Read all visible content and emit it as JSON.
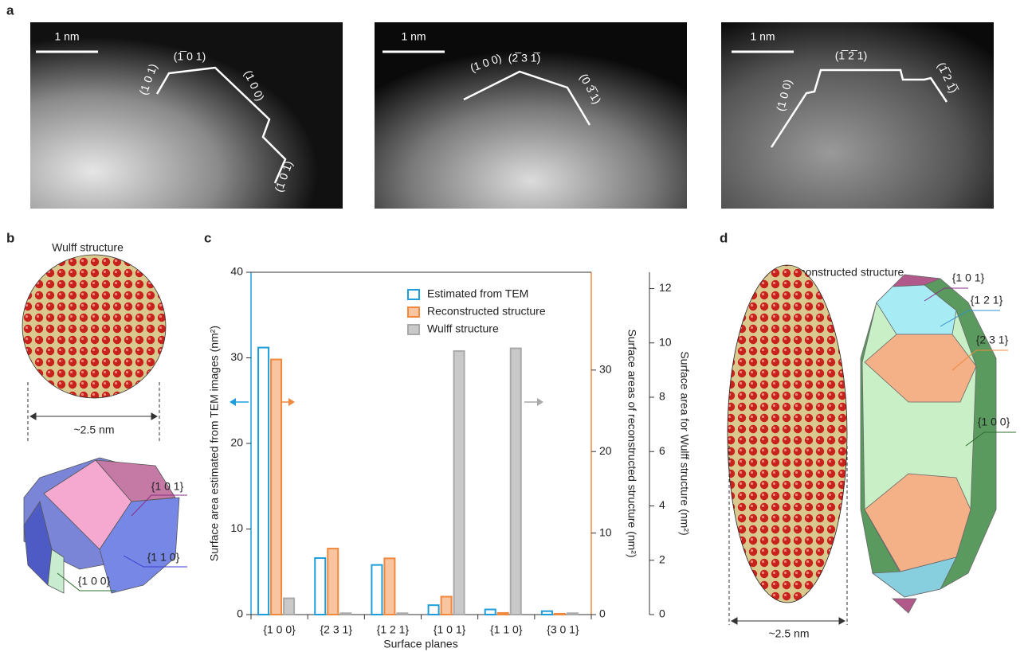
{
  "chart_data": {
    "type": "bar",
    "panel_label": "c",
    "xlabel": "Surface planes",
    "ylabel": "Surface area estimated from TEM images (nm²)",
    "y2label": "Surface areas of reconstructed structure (nm²)",
    "y3label": "Surface area for Wulff structure (nm²)",
    "categories": [
      "{1 0 0}",
      "{2 3 1}",
      "{1 2 1}",
      "{1 0 1}",
      "{1 1 0}",
      "{3 0 1}"
    ],
    "ylim": [
      0,
      40
    ],
    "yticks": [
      0,
      10,
      20,
      30,
      40
    ],
    "y2lim": [
      0,
      42
    ],
    "y2ticks": [
      0,
      10,
      20,
      30
    ],
    "y3lim": [
      0,
      12.6
    ],
    "y3ticks": [
      0,
      2,
      4,
      6,
      8,
      10,
      12
    ],
    "legend": "upper right",
    "series": [
      {
        "name": "Estimated from TEM",
        "color": "#1e9ddb",
        "fill": "#ffffff",
        "axis": "y",
        "values": [
          31.2,
          6.6,
          5.8,
          1.1,
          0.6,
          0.4
        ]
      },
      {
        "name": "Reconstructed structure",
        "color": "#f0883e",
        "fill": "#f9c4a0",
        "axis": "y2",
        "values": [
          31.3,
          8.1,
          6.9,
          2.2,
          0.2,
          0.1
        ]
      },
      {
        "name": "Wulff structure",
        "color": "#a9a9a9",
        "fill": "#c9c9c9",
        "axis": "y3",
        "values": [
          0.6,
          0.05,
          0.05,
          9.7,
          9.8,
          0.05
        ]
      }
    ]
  },
  "panel_a": {
    "label": "a",
    "scale": [
      "1 nm",
      "1 nm",
      "1 nm"
    ],
    "image1": [
      "(1 0 1)",
      "(1̅ 0 1)",
      "(1 0 0)",
      "(1 0 1)"
    ],
    "image2": [
      "(1 0 0)",
      "(2̅ 3 1̅)",
      "(0 3̅ 1)"
    ],
    "image3": [
      "(1 0 0)",
      "(1̅ 2̅ 1)",
      "(1̅ 2 1̅)"
    ]
  },
  "panel_b": {
    "label": "b",
    "title": "Wulff structure",
    "size": "~2.5 nm",
    "facets": [
      "{1 0 1}",
      "{1 1 0}",
      "{1 0 0}"
    ]
  },
  "panel_d": {
    "label": "d",
    "title": "Reconstructed structure",
    "size": "~2.5 nm",
    "facets": [
      "{1 0 1}",
      "{1 2 1}",
      "{2 3 1}",
      "{1 0 0}"
    ]
  }
}
